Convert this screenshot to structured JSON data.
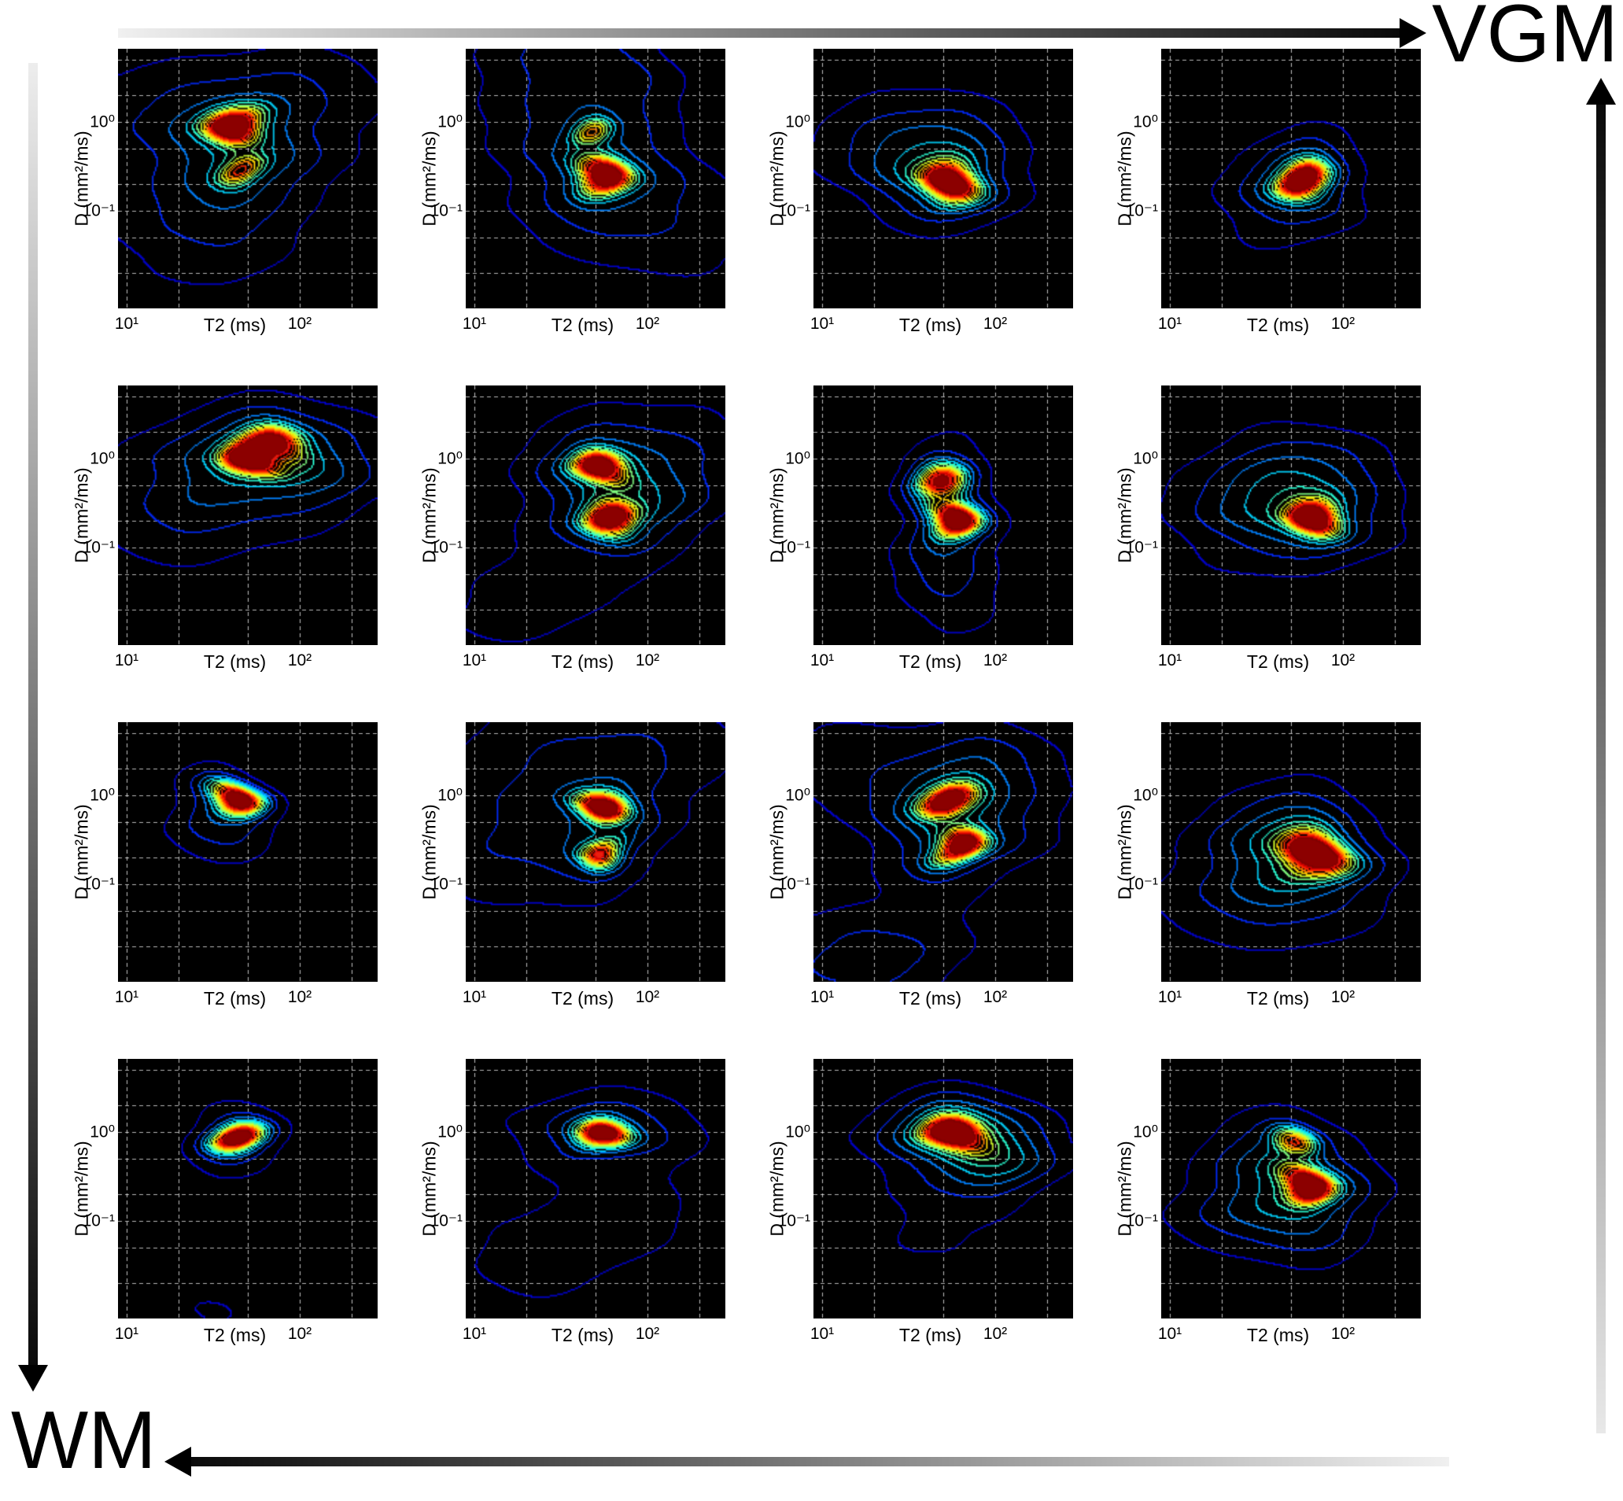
{
  "labels": {
    "vgm": "VGM",
    "wm": "WM"
  },
  "arrows": {
    "top": {
      "label": "VGM",
      "direction": "right"
    },
    "right": {
      "direction": "up"
    },
    "left": {
      "direction": "down"
    },
    "bottom": {
      "label": "WM",
      "direction": "left"
    }
  },
  "chart_data": {
    "type": "contour",
    "description": "4x4 grid of D-T2 correlation contour spectra, interpolating between WM (bottom-left) and VGM (top-right)",
    "grid": {
      "rows": 4,
      "cols": 4
    },
    "x_axis": {
      "label": "T2 (ms)",
      "scale": "log",
      "range_log10": [
        0.95,
        2.45
      ],
      "ticks": [
        {
          "value": 10,
          "label": "10¹"
        },
        {
          "value": 100,
          "label": "10²"
        }
      ],
      "gridlines": [
        10,
        20,
        50,
        100,
        200
      ]
    },
    "y_axis": {
      "label": "D (mm²/ms)",
      "scale": "log",
      "range_log10": [
        -2.1,
        0.82
      ],
      "ticks": [
        {
          "value": 1,
          "label": "10⁰"
        },
        {
          "value": 0.1,
          "label": "10⁻¹"
        }
      ],
      "gridlines": [
        5,
        2,
        1,
        0.5,
        0.2,
        0.1,
        0.05,
        0.02
      ]
    },
    "colormap": "jet",
    "levels": 13,
    "panels": [
      {
        "row": 0,
        "col": 0,
        "peaks": [
          {
            "t2": 45,
            "d": 0.95,
            "a": 1.0,
            "sx": 0.105,
            "sy": 0.13
          },
          {
            "t2": 43,
            "d": 0.3,
            "a": 0.5,
            "sx": 0.075,
            "sy": 0.11
          }
        ],
        "halos": [
          {
            "t2": 45,
            "d": 0.45,
            "a": 0.24,
            "sx": 0.33,
            "sy": 0.5
          },
          {
            "t2": 28,
            "d": 0.06,
            "a": 0.13,
            "sx": 0.45,
            "sy": 0.55
          },
          {
            "t2": 120,
            "d": 2.0,
            "a": 0.11,
            "sx": 0.45,
            "sy": 0.45
          },
          {
            "t2": 14,
            "d": 1.5,
            "a": 0.1,
            "sx": 0.4,
            "sy": 0.5
          }
        ]
      },
      {
        "row": 0,
        "col": 1,
        "peaks": [
          {
            "t2": 52,
            "d": 0.23,
            "a": 1.0,
            "sx": 0.095,
            "sy": 0.14
          },
          {
            "t2": 50,
            "d": 0.72,
            "a": 0.48,
            "sx": 0.07,
            "sy": 0.1
          }
        ],
        "halos": [
          {
            "t2": 53,
            "d": 0.3,
            "a": 0.22,
            "sx": 0.35,
            "sy": 0.5
          },
          {
            "t2": 28,
            "d": 3.5,
            "a": 0.13,
            "sx": 0.4,
            "sy": 0.55
          },
          {
            "t2": 120,
            "d": 0.06,
            "a": 0.11,
            "sx": 0.5,
            "sy": 0.5
          },
          {
            "t2": 60,
            "d": 4.0,
            "a": 0.1,
            "sx": 0.3,
            "sy": 0.4
          }
        ]
      },
      {
        "row": 0,
        "col": 2,
        "peaks": [
          {
            "t2": 55,
            "d": 0.22,
            "a": 1.0,
            "sx": 0.1,
            "sy": 0.15
          }
        ],
        "halos": [
          {
            "t2": 50,
            "d": 0.3,
            "a": 0.24,
            "sx": 0.3,
            "sy": 0.45
          },
          {
            "t2": 30,
            "d": 0.5,
            "a": 0.13,
            "sx": 0.45,
            "sy": 0.5
          }
        ]
      },
      {
        "row": 0,
        "col": 3,
        "peaks": [
          {
            "t2": 62,
            "d": 0.21,
            "a": 1.0,
            "sx": 0.09,
            "sy": 0.13
          }
        ],
        "halos": [
          {
            "t2": 58,
            "d": 0.25,
            "a": 0.22,
            "sx": 0.22,
            "sy": 0.35
          },
          {
            "t2": 45,
            "d": 0.12,
            "a": 0.11,
            "sx": 0.35,
            "sy": 0.45
          }
        ]
      },
      {
        "row": 1,
        "col": 0,
        "peaks": [
          {
            "t2": 52,
            "d": 0.8,
            "a": 0.95,
            "sx": 0.1,
            "sy": 0.11
          },
          {
            "t2": 75,
            "d": 1.3,
            "a": 0.85,
            "sx": 0.12,
            "sy": 0.12
          }
        ],
        "halos": [
          {
            "t2": 60,
            "d": 0.9,
            "a": 0.26,
            "sx": 0.42,
            "sy": 0.42
          },
          {
            "t2": 25,
            "d": 0.25,
            "a": 0.13,
            "sx": 0.5,
            "sy": 0.55
          },
          {
            "t2": 150,
            "d": 1.5,
            "a": 0.08,
            "sx": 0.35,
            "sy": 0.35
          }
        ]
      },
      {
        "row": 1,
        "col": 1,
        "peaks": [
          {
            "t2": 57,
            "d": 0.8,
            "a": 0.95,
            "sx": 0.1,
            "sy": 0.11
          },
          {
            "t2": 60,
            "d": 0.22,
            "a": 1.0,
            "sx": 0.1,
            "sy": 0.13
          }
        ],
        "halos": [
          {
            "t2": 60,
            "d": 0.4,
            "a": 0.26,
            "sx": 0.33,
            "sy": 0.55
          },
          {
            "t2": 130,
            "d": 0.9,
            "a": 0.13,
            "sx": 0.4,
            "sy": 0.5
          },
          {
            "t2": 18,
            "d": 0.02,
            "a": 0.11,
            "sx": 0.4,
            "sy": 0.45
          }
        ]
      },
      {
        "row": 1,
        "col": 2,
        "peaks": [
          {
            "t2": 52,
            "d": 0.6,
            "a": 0.78,
            "sx": 0.09,
            "sy": 0.12
          },
          {
            "t2": 54,
            "d": 0.22,
            "a": 1.0,
            "sx": 0.085,
            "sy": 0.12
          }
        ],
        "halos": [
          {
            "t2": 53,
            "d": 0.35,
            "a": 0.26,
            "sx": 0.18,
            "sy": 0.5
          },
          {
            "t2": 55,
            "d": 0.04,
            "a": 0.13,
            "sx": 0.25,
            "sy": 0.5
          }
        ]
      },
      {
        "row": 1,
        "col": 3,
        "peaks": [
          {
            "t2": 70,
            "d": 0.2,
            "a": 1.0,
            "sx": 0.095,
            "sy": 0.13
          }
        ],
        "halos": [
          {
            "t2": 55,
            "d": 0.3,
            "a": 0.26,
            "sx": 0.33,
            "sy": 0.45
          },
          {
            "t2": 40,
            "d": 0.35,
            "a": 0.13,
            "sx": 0.5,
            "sy": 0.55
          }
        ]
      },
      {
        "row": 2,
        "col": 0,
        "peaks": [
          {
            "t2": 40,
            "d": 0.85,
            "a": 1.0,
            "sx": 0.09,
            "sy": 0.11
          }
        ],
        "halos": [
          {
            "t2": 36,
            "d": 0.55,
            "a": 0.23,
            "sx": 0.22,
            "sy": 0.38
          }
        ]
      },
      {
        "row": 2,
        "col": 1,
        "peaks": [
          {
            "t2": 55,
            "d": 0.85,
            "a": 1.0,
            "sx": 0.09,
            "sy": 0.11
          },
          {
            "t2": 57,
            "d": 0.25,
            "a": 0.68,
            "sx": 0.075,
            "sy": 0.105
          }
        ],
        "halos": [
          {
            "t2": 56,
            "d": 0.45,
            "a": 0.22,
            "sx": 0.25,
            "sy": 0.5
          },
          {
            "t2": 14,
            "d": 0.3,
            "a": 0.15,
            "sx": 0.32,
            "sy": 0.65
          },
          {
            "t2": 35,
            "d": 4.5,
            "a": 0.11,
            "sx": 0.45,
            "sy": 0.45
          },
          {
            "t2": 160,
            "d": 2.5,
            "a": 0.09,
            "sx": 0.35,
            "sy": 0.45
          }
        ]
      },
      {
        "row": 2,
        "col": 2,
        "peaks": [
          {
            "t2": 56,
            "d": 0.85,
            "a": 0.92,
            "sx": 0.1,
            "sy": 0.11
          },
          {
            "t2": 58,
            "d": 0.25,
            "a": 0.95,
            "sx": 0.09,
            "sy": 0.12
          }
        ],
        "halos": [
          {
            "t2": 57,
            "d": 0.5,
            "a": 0.28,
            "sx": 0.3,
            "sy": 0.55
          },
          {
            "t2": 18,
            "d": 0.015,
            "a": 0.2,
            "sx": 0.4,
            "sy": 0.4
          },
          {
            "t2": 110,
            "d": 1.5,
            "a": 0.11,
            "sx": 0.4,
            "sy": 0.45
          },
          {
            "t2": 12,
            "d": 2.5,
            "a": 0.1,
            "sx": 0.35,
            "sy": 0.5
          }
        ]
      },
      {
        "row": 2,
        "col": 3,
        "peaks": [
          {
            "t2": 65,
            "d": 0.2,
            "a": 1.0,
            "sx": 0.115,
            "sy": 0.155
          }
        ],
        "halos": [
          {
            "t2": 55,
            "d": 0.25,
            "a": 0.3,
            "sx": 0.3,
            "sy": 0.45
          },
          {
            "t2": 35,
            "d": 0.08,
            "a": 0.15,
            "sx": 0.5,
            "sy": 0.55
          }
        ]
      },
      {
        "row": 3,
        "col": 0,
        "peaks": [
          {
            "t2": 42,
            "d": 0.9,
            "a": 1.0,
            "sx": 0.09,
            "sy": 0.1
          }
        ],
        "halos": [
          {
            "t2": 42,
            "d": 0.85,
            "a": 0.22,
            "sx": 0.2,
            "sy": 0.3
          },
          {
            "t2": 30,
            "d": 0.01,
            "a": 0.08,
            "sx": 0.35,
            "sy": 0.35
          }
        ]
      },
      {
        "row": 3,
        "col": 1,
        "peaks": [
          {
            "t2": 52,
            "d": 0.9,
            "a": 1.0,
            "sx": 0.1,
            "sy": 0.1
          }
        ],
        "halos": [
          {
            "t2": 56,
            "d": 1.1,
            "a": 0.22,
            "sx": 0.38,
            "sy": 0.3
          },
          {
            "t2": 25,
            "d": 0.04,
            "a": 0.11,
            "sx": 0.45,
            "sy": 0.45
          },
          {
            "t2": 90,
            "d": 0.15,
            "a": 0.08,
            "sx": 0.4,
            "sy": 0.4
          }
        ]
      },
      {
        "row": 3,
        "col": 2,
        "peaks": [
          {
            "t2": 60,
            "d": 0.85,
            "a": 1.0,
            "sx": 0.11,
            "sy": 0.11
          }
        ],
        "halos": [
          {
            "t2": 75,
            "d": 0.55,
            "a": 0.3,
            "sx": 0.28,
            "sy": 0.38
          },
          {
            "t2": 62,
            "d": 0.95,
            "a": 0.2,
            "sx": 0.4,
            "sy": 0.3
          },
          {
            "t2": 40,
            "d": 0.05,
            "a": 0.08,
            "sx": 0.4,
            "sy": 0.4
          }
        ]
      },
      {
        "row": 3,
        "col": 3,
        "peaks": [
          {
            "t2": 58,
            "d": 0.27,
            "a": 1.0,
            "sx": 0.09,
            "sy": 0.13
          },
          {
            "t2": 55,
            "d": 0.8,
            "a": 0.58,
            "sx": 0.085,
            "sy": 0.1
          }
        ],
        "halos": [
          {
            "t2": 50,
            "d": 0.3,
            "a": 0.28,
            "sx": 0.3,
            "sy": 0.5
          },
          {
            "t2": 35,
            "d": 0.12,
            "a": 0.13,
            "sx": 0.45,
            "sy": 0.4
          }
        ]
      }
    ]
  }
}
